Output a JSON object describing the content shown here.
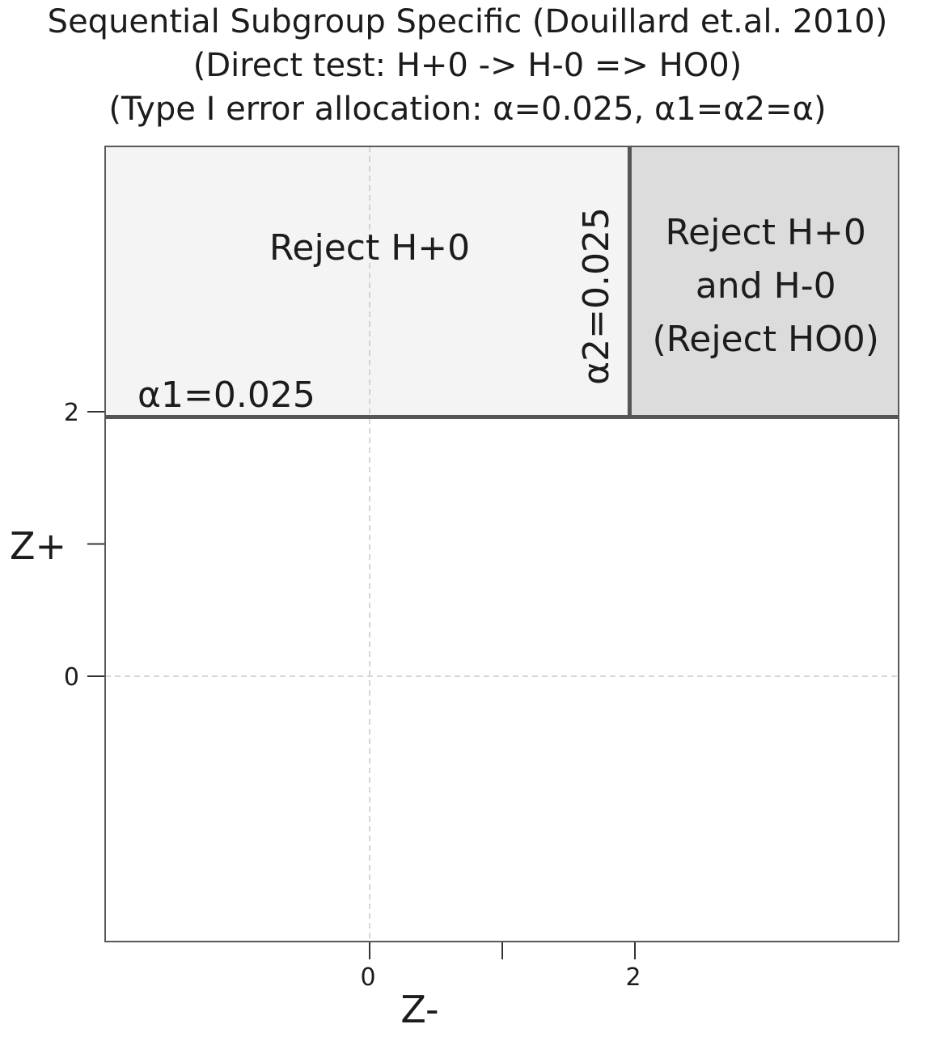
{
  "chart_data": {
    "type": "region",
    "title_lines": [
      "Sequential Subgroup Specific (Douillard et.al. 2010)",
      "(Direct test: H+0 -> H-0 => HO0)",
      "(Type I error allocation: α=0.025, α1=α2=α)"
    ],
    "xlabel": "Z-",
    "ylabel": "Z+",
    "xlim": [
      -1.0,
      3.0
    ],
    "ylim": [
      -1.0,
      2.0
    ],
    "x_tick_labels": [
      {
        "value": 0,
        "label": "0"
      },
      {
        "value": 1,
        "label": ""
      },
      {
        "value": 2,
        "label": "2"
      }
    ],
    "y_tick_labels": [
      {
        "value": 0,
        "label": "0"
      },
      {
        "value": 1,
        "label": ""
      },
      {
        "value": 2,
        "label": "2"
      }
    ],
    "grid": "dashed at 0",
    "thresholds": {
      "z_plus": 1.96,
      "z_minus": 1.96
    },
    "regions": [
      {
        "name": "Reject H+0",
        "x_range": [
          -1.0,
          1.96
        ],
        "y_range": [
          1.96,
          2.0
        ],
        "color": "#f4f4f4",
        "label": "Reject H+0"
      },
      {
        "name": "Reject H+0 and H-0 (Reject HO0)",
        "x_range": [
          1.96,
          3.0
        ],
        "y_range": [
          1.96,
          2.0
        ],
        "color": "#dcdcdc",
        "label_lines": [
          "Reject H+0",
          "and H-0",
          "(Reject HO0)"
        ]
      }
    ],
    "annotations": {
      "alpha1": "α1=0.025",
      "alpha2": "α2=0.025"
    }
  }
}
